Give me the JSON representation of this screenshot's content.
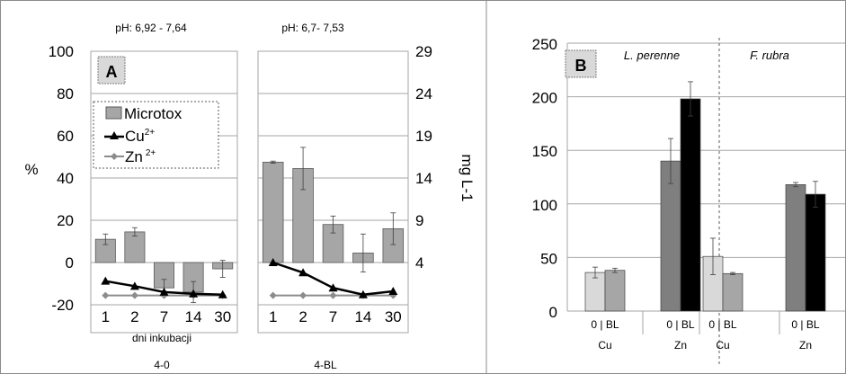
{
  "chart_data": [
    {
      "type": "bar",
      "panel_label": "A",
      "ylabel": "%",
      "y2label": "mg L-1",
      "ylim": [
        -20,
        100
      ],
      "yticks": [
        -20,
        0,
        20,
        40,
        60,
        80,
        100
      ],
      "y2lim": [
        -1,
        29
      ],
      "y2ticks": [
        4,
        9,
        14,
        19,
        24,
        29
      ],
      "xlabel": "dni inkubacji",
      "categories": [
        "1",
        "2",
        "7",
        "14",
        "30"
      ],
      "colors": {
        "microtox": "#a6a6a6",
        "cu": "#000000",
        "zn": "#8c8c8c"
      },
      "legend": {
        "microtox": "Microtox",
        "cu_base": "Cu",
        "cu_sup": "2+",
        "zn_base": "Zn",
        "zn_sup": "2+"
      },
      "groups": [
        {
          "name": "4-0",
          "ph": "pH: 6,92 - 7,64",
          "microtox": [
            11,
            14.5,
            -12,
            -14,
            -3
          ],
          "microtox_err": [
            2.5,
            2,
            4,
            5,
            4
          ],
          "cu": [
            1.8,
            1.2,
            0.5,
            0.3,
            0.2
          ],
          "zn": [
            0.1,
            0.1,
            0.1,
            0.1,
            0.1
          ]
        },
        {
          "name": "4-BL",
          "ph": "pH: 6,7- 7,53",
          "microtox": [
            47.5,
            44.5,
            18,
            4.5,
            16
          ],
          "microtox_err": [
            0.5,
            10,
            4,
            9,
            7.5
          ],
          "cu": [
            4,
            2.8,
            1,
            0.2,
            0.6
          ],
          "zn": [
            0.1,
            0.1,
            0.1,
            0.1,
            0.1
          ]
        }
      ]
    },
    {
      "type": "bar",
      "panel_label": "B",
      "ylim": [
        0,
        250
      ],
      "yticks": [
        0,
        50,
        100,
        150,
        200,
        250
      ],
      "colors": {
        "cu_0": "#d9d9d9",
        "cu_bl": "#a6a6a6",
        "zn_0": "#7f7f7f",
        "zn_bl": "#000000"
      },
      "groups": [
        {
          "species": "L. perenne",
          "metals": [
            {
              "name": "Cu",
              "tick": "0 | BL",
              "values": [
                36,
                38
              ],
              "err": [
                5,
                2
              ]
            },
            {
              "name": "Zn",
              "tick": "0 | BL",
              "values": [
                140,
                198
              ],
              "err": [
                21,
                16
              ]
            }
          ]
        },
        {
          "species": "F. rubra",
          "metals": [
            {
              "name": "Cu",
              "tick": "0 | BL",
              "values": [
                51,
                35
              ],
              "err": [
                17,
                1
              ]
            },
            {
              "name": "Zn",
              "tick": "0 | BL",
              "values": [
                118,
                109
              ],
              "err": [
                2,
                12
              ]
            }
          ]
        }
      ]
    }
  ]
}
